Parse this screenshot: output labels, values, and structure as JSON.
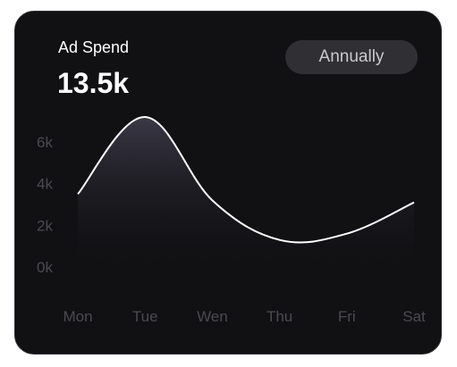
{
  "card": {
    "title": "Ad Spend",
    "value": "13.5k",
    "period_button": "Annually"
  },
  "colors": {
    "background": "#111114",
    "line": "#ffffff",
    "tick_text": "#4a4a50",
    "button_bg": "#303034"
  },
  "chart_data": {
    "type": "area",
    "categories": [
      "Mon",
      "Tue",
      "Wen",
      "Thu",
      "Fri",
      "Sat"
    ],
    "values": [
      3.5,
      7.2,
      3.2,
      1.3,
      1.6,
      3.1
    ],
    "y_ticks": [
      "0k",
      "2k",
      "4k",
      "6k"
    ],
    "ylim": [
      0,
      8
    ],
    "grid": false,
    "legend": "none"
  }
}
